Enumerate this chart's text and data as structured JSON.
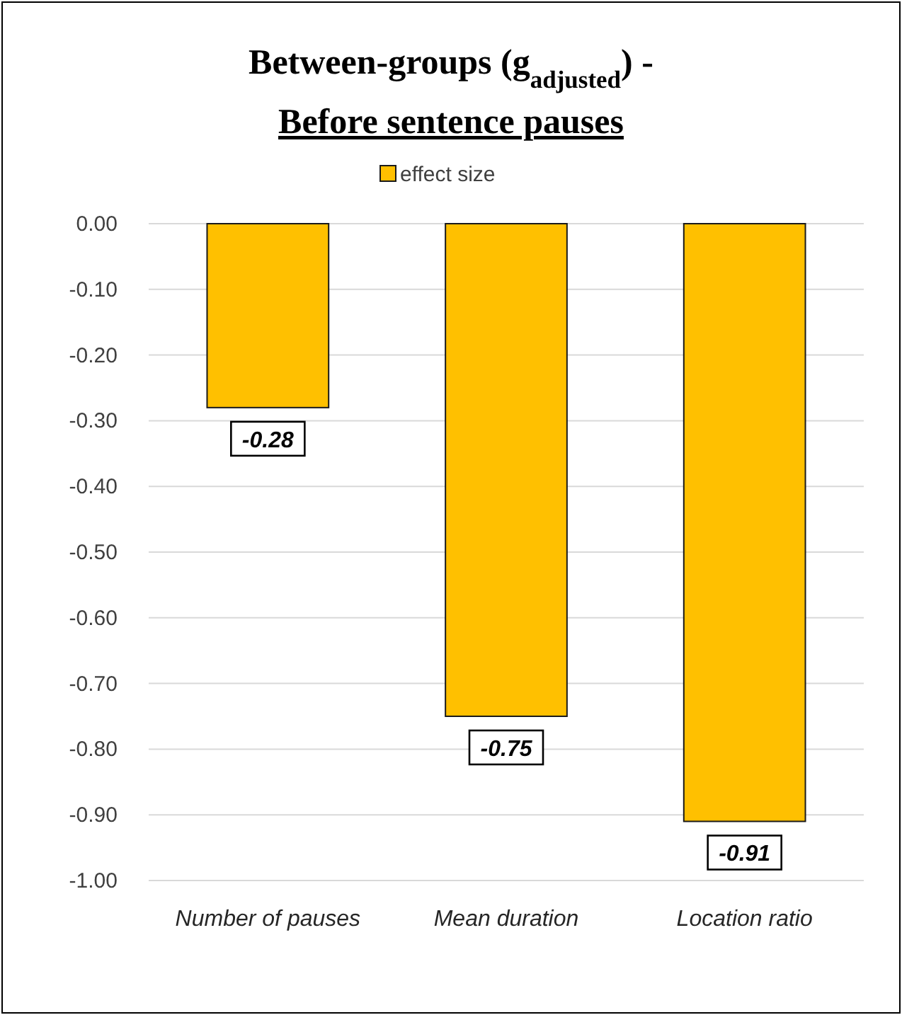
{
  "chart_data": {
    "type": "bar",
    "title": "Between-groups (g$_{adjusted}$) -",
    "subtitle": "Before sentence pauses",
    "categories": [
      "Number of pauses",
      "Mean duration",
      "Location ratio"
    ],
    "series": [
      {
        "name": "effect size",
        "color": "#ffc000",
        "values": [
          -0.28,
          -0.75,
          -0.91
        ],
        "value_labels": [
          "-0.28",
          "-0.75",
          "-0.91"
        ]
      }
    ],
    "ylim": [
      -1,
      0
    ],
    "yticks": [
      {
        "value": 0,
        "label": "0.00"
      },
      {
        "value": -0.1,
        "label": "-0.10"
      },
      {
        "value": -0.2,
        "label": "-0.20"
      },
      {
        "value": -0.3,
        "label": "-0.30"
      },
      {
        "value": -0.4,
        "label": "-0.40"
      },
      {
        "value": -0.5,
        "label": "-0.50"
      },
      {
        "value": -0.6,
        "label": "-0.60"
      },
      {
        "value": -0.7,
        "label": "-0.70"
      },
      {
        "value": -0.8,
        "label": "-0.80"
      },
      {
        "value": -0.9,
        "label": "-0.90"
      },
      {
        "value": -1,
        "label": "-1.00"
      }
    ],
    "grid": "y",
    "legend": "top"
  }
}
